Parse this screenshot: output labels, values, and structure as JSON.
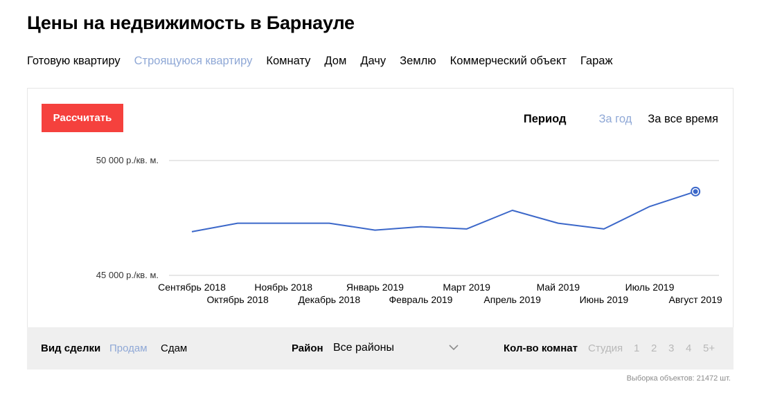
{
  "page": {
    "title": "Цены на недвижимость в Барнауле"
  },
  "property_types": [
    {
      "label": "Готовую квартиру",
      "active": false
    },
    {
      "label": "Строящуюся квартиру",
      "active": true
    },
    {
      "label": "Комнату",
      "active": false
    },
    {
      "label": "Дом",
      "active": false
    },
    {
      "label": "Дачу",
      "active": false
    },
    {
      "label": "Землю",
      "active": false
    },
    {
      "label": "Коммерческий объект",
      "active": false
    },
    {
      "label": "Гараж",
      "active": false
    }
  ],
  "calculate_label": "Рассчитать",
  "period": {
    "label": "Период",
    "options": [
      {
        "label": "За год",
        "active": true
      },
      {
        "label": "За все время",
        "active": false
      }
    ]
  },
  "colors": {
    "accent": "#f5413d",
    "line": "#3b67c9",
    "active_link": "#8fa8d6",
    "filter_bg": "#efefef"
  },
  "chart_data": {
    "type": "line",
    "categories": [
      "Сентябрь 2018",
      "Октябрь 2018",
      "Ноябрь 2018",
      "Декабрь 2018",
      "Январь 2019",
      "Февраль 2019",
      "Март 2019",
      "Апрель 2019",
      "Май 2019",
      "Июнь 2019",
      "Июль 2019",
      "Август 2019"
    ],
    "series": [
      {
        "values": [
          46900,
          47270,
          47270,
          47270,
          46970,
          47120,
          47020,
          47830,
          47270,
          47020,
          48000,
          48650
        ]
      }
    ],
    "y_ticks": [
      {
        "value": 50000,
        "label": "50 000 р./кв. м."
      },
      {
        "value": 45000,
        "label": "45 000 р./кв. м."
      }
    ],
    "ylim": [
      45000,
      50000
    ],
    "grid": true,
    "highlight_last_point": true
  },
  "filters": {
    "deal": {
      "label": "Вид сделки",
      "options": [
        {
          "label": "Продам",
          "active": true
        },
        {
          "label": "Сдам",
          "active": false
        }
      ]
    },
    "district": {
      "label": "Район",
      "value": "Все районы"
    },
    "rooms": {
      "label": "Кол-во комнат",
      "options": [
        {
          "label": "Студия"
        },
        {
          "label": "1"
        },
        {
          "label": "2"
        },
        {
          "label": "3"
        },
        {
          "label": "4"
        },
        {
          "label": "5+"
        }
      ]
    }
  },
  "sample_text": "Выборка объектов: 21472 шт."
}
